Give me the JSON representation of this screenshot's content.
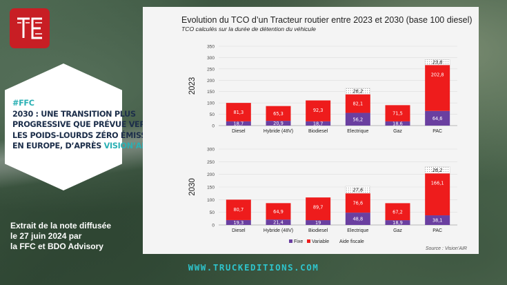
{
  "logo": {
    "letters": "TE",
    "color": "#c81e24"
  },
  "hexagon": {
    "tag": "#FFC",
    "lines": [
      "2030 : UNE TRANSITION PLUS",
      "PROGRESSIVE QUE PRÉVUE VERS",
      "LES POIDS-LOURDS ZÉRO ÉMISSION",
      "EN EUROPE, D’APRÈS"
    ],
    "highlight": "VISION’AIR"
  },
  "extrait": {
    "lines": [
      "Extrait de la note diffusée",
      "le 27 juin 2024 par",
      "la FFC et BDO Advisory"
    ]
  },
  "website": "WWW.TRUCKEDITIONS.COM",
  "chart": {
    "title": "Evolution du TCO d’un Tracteur routier entre 2023 et 2030 (base 100 diesel)",
    "subtitle": "TCO calculés sur la durée de détention du véhicule",
    "source": "Source : Vision’AIR"
  },
  "colors": {
    "fixe": "#6a3fa0",
    "variable": "#ee1c1c",
    "aide": "#ffffff",
    "accent": "#2ec4cc",
    "navy": "#1c2e4a"
  },
  "chart_data": [
    {
      "type": "bar",
      "stacked": true,
      "panel_label": "2023",
      "categories": [
        "Diesel",
        "Hybride (48V)",
        "Biodiesel",
        "Electrique",
        "Gaz",
        "PAC"
      ],
      "ylim": [
        0,
        350
      ],
      "yticks": [
        0,
        50,
        100,
        150,
        200,
        250,
        300,
        350
      ],
      "series": [
        {
          "name": "Fixe",
          "values": [
            18.7,
            20.9,
            18.7,
            56.2,
            18.6,
            64.6
          ],
          "labels": [
            "18,7",
            "20,9",
            "18,7",
            "56,2",
            "18,6",
            "64,6"
          ]
        },
        {
          "name": "Variable",
          "values": [
            81.3,
            65.3,
            92.3,
            82.1,
            71.5,
            202.8
          ],
          "labels": [
            "81,3",
            "65,3",
            "92,3",
            "82,1",
            "71,5",
            "202,8"
          ]
        },
        {
          "name": "Aide fiscale",
          "values": [
            0,
            0,
            0,
            26.2,
            0,
            23.8
          ],
          "labels": [
            "",
            "",
            "",
            "26,2",
            "",
            "23,8"
          ]
        }
      ]
    },
    {
      "type": "bar",
      "stacked": true,
      "panel_label": "2030",
      "categories": [
        "Diesel",
        "Hybride (48V)",
        "Biodiesel",
        "Electrique",
        "Gaz",
        "PAC"
      ],
      "ylim": [
        0,
        300
      ],
      "yticks": [
        0,
        50,
        100,
        150,
        200,
        250,
        300
      ],
      "series": [
        {
          "name": "Fixe",
          "values": [
            19.3,
            21.4,
            19,
            48.8,
            18.9,
            38.1
          ],
          "labels": [
            "19,3",
            "21,4",
            "19",
            "48,8",
            "18,9",
            "38,1"
          ]
        },
        {
          "name": "Variable",
          "values": [
            80.7,
            64.9,
            89.7,
            76.6,
            67.2,
            166.1
          ],
          "labels": [
            "80,7",
            "64,9",
            "89,7",
            "76,6",
            "67,2",
            "166,1"
          ]
        },
        {
          "name": "Aide fiscale",
          "values": [
            0,
            0,
            0,
            27.6,
            0,
            26.2
          ],
          "labels": [
            "",
            "",
            "",
            "27,6",
            "",
            "26,2"
          ]
        }
      ]
    }
  ],
  "legend": {
    "placement": "bottom",
    "items": [
      "Fixe",
      "Variable",
      "Aide fiscale"
    ]
  }
}
